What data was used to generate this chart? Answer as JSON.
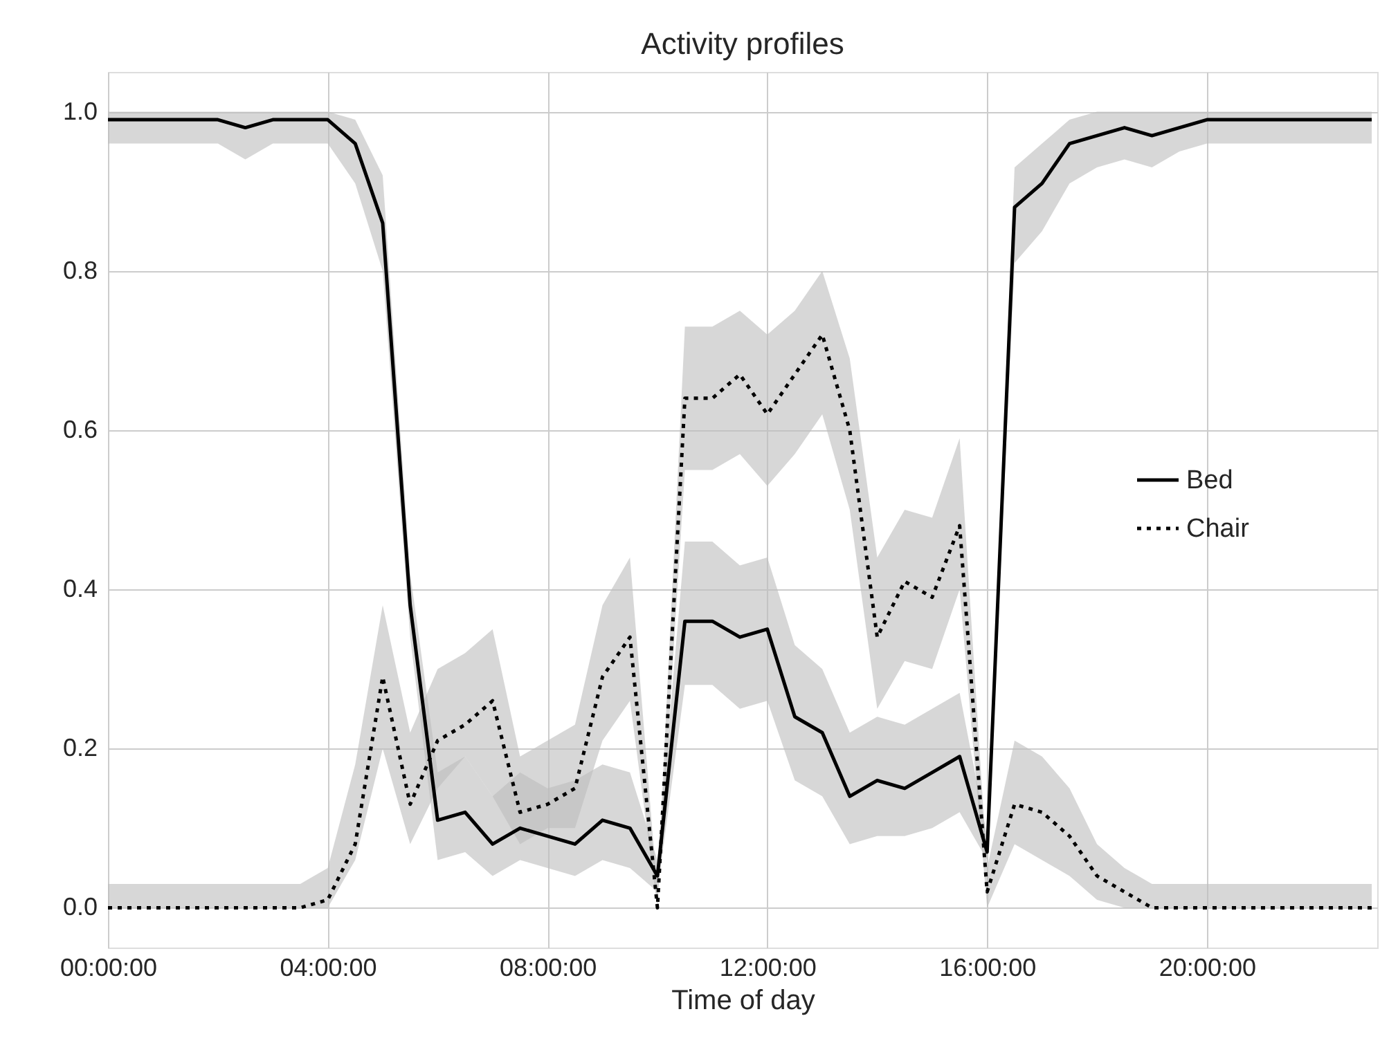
{
  "chart_data": {
    "type": "line",
    "title": "Activity profiles",
    "xlabel": "Time of day",
    "x": [
      0,
      0.5,
      1,
      1.5,
      2,
      2.5,
      3,
      3.5,
      4,
      4.5,
      5,
      5.5,
      6,
      6.5,
      7,
      7.5,
      8,
      8.5,
      9,
      9.5,
      10,
      10.5,
      11,
      11.5,
      12,
      12.5,
      13,
      13.5,
      14,
      14.5,
      15,
      15.5,
      16,
      16.5,
      17,
      17.5,
      18,
      18.5,
      19,
      19.5,
      20,
      20.5,
      21,
      21.5,
      22,
      22.5,
      23
    ],
    "series": [
      {
        "name": "Bed",
        "color": "#000000",
        "line_style": "solid",
        "values": [
          0.99,
          0.99,
          0.99,
          0.99,
          0.99,
          0.98,
          0.99,
          0.99,
          0.99,
          0.96,
          0.86,
          0.38,
          0.11,
          0.12,
          0.08,
          0.1,
          0.09,
          0.08,
          0.11,
          0.1,
          0.04,
          0.36,
          0.36,
          0.34,
          0.35,
          0.24,
          0.22,
          0.14,
          0.16,
          0.15,
          0.17,
          0.19,
          0.07,
          0.88,
          0.91,
          0.96,
          0.97,
          0.98,
          0.97,
          0.98,
          0.99,
          0.99,
          0.99,
          0.99,
          0.99,
          0.99,
          0.99
        ],
        "upper": [
          1.0,
          1.0,
          1.0,
          1.0,
          1.0,
          1.0,
          1.0,
          1.0,
          1.0,
          0.99,
          0.92,
          0.42,
          0.17,
          0.19,
          0.14,
          0.17,
          0.15,
          0.16,
          0.18,
          0.17,
          0.06,
          0.46,
          0.46,
          0.43,
          0.44,
          0.33,
          0.3,
          0.22,
          0.24,
          0.23,
          0.25,
          0.27,
          0.09,
          0.93,
          0.96,
          0.99,
          1.0,
          1.0,
          1.0,
          1.0,
          1.0,
          1.0,
          1.0,
          1.0,
          1.0,
          1.0,
          1.0
        ],
        "lower": [
          0.96,
          0.96,
          0.96,
          0.96,
          0.96,
          0.94,
          0.96,
          0.96,
          0.96,
          0.91,
          0.8,
          0.34,
          0.06,
          0.07,
          0.04,
          0.06,
          0.05,
          0.04,
          0.06,
          0.05,
          0.02,
          0.28,
          0.28,
          0.25,
          0.26,
          0.16,
          0.14,
          0.08,
          0.09,
          0.09,
          0.1,
          0.12,
          0.06,
          0.81,
          0.85,
          0.91,
          0.93,
          0.94,
          0.93,
          0.95,
          0.96,
          0.96,
          0.96,
          0.96,
          0.96,
          0.96,
          0.96
        ]
      },
      {
        "name": "Chair",
        "color": "#000000",
        "line_style": "dotted",
        "values": [
          0.0,
          0.0,
          0.0,
          0.0,
          0.0,
          0.0,
          0.0,
          0.0,
          0.01,
          0.08,
          0.29,
          0.13,
          0.21,
          0.23,
          0.26,
          0.12,
          0.13,
          0.15,
          0.29,
          0.34,
          0.0,
          0.64,
          0.64,
          0.67,
          0.62,
          0.67,
          0.72,
          0.6,
          0.34,
          0.41,
          0.39,
          0.48,
          0.02,
          0.13,
          0.12,
          0.09,
          0.04,
          0.02,
          0.0,
          0.0,
          0.0,
          0.0,
          0.0,
          0.0,
          0.0,
          0.0,
          0.0
        ],
        "upper": [
          0.03,
          0.03,
          0.03,
          0.03,
          0.03,
          0.03,
          0.03,
          0.03,
          0.05,
          0.18,
          0.38,
          0.22,
          0.3,
          0.32,
          0.35,
          0.19,
          0.21,
          0.23,
          0.38,
          0.44,
          0.02,
          0.73,
          0.73,
          0.75,
          0.72,
          0.75,
          0.8,
          0.69,
          0.44,
          0.5,
          0.49,
          0.59,
          0.05,
          0.21,
          0.19,
          0.15,
          0.08,
          0.05,
          0.03,
          0.03,
          0.03,
          0.03,
          0.03,
          0.03,
          0.03,
          0.03,
          0.03
        ],
        "lower": [
          0.0,
          0.0,
          0.0,
          0.0,
          0.0,
          0.0,
          0.0,
          0.0,
          0.0,
          0.06,
          0.2,
          0.08,
          0.15,
          0.19,
          0.14,
          0.08,
          0.1,
          0.1,
          0.21,
          0.26,
          0.0,
          0.55,
          0.55,
          0.57,
          0.53,
          0.57,
          0.62,
          0.5,
          0.25,
          0.31,
          0.3,
          0.4,
          0.0,
          0.08,
          0.06,
          0.04,
          0.01,
          0.0,
          0.0,
          0.0,
          0.0,
          0.0,
          0.0,
          0.0,
          0.0,
          0.0,
          0.0
        ]
      }
    ],
    "xlim": [
      0,
      23.1
    ],
    "xticks": [
      {
        "value": 0,
        "label": "00:00:00"
      },
      {
        "value": 4,
        "label": "04:00:00"
      },
      {
        "value": 8,
        "label": "08:00:00"
      },
      {
        "value": 12,
        "label": "12:00:00"
      },
      {
        "value": 16,
        "label": "16:00:00"
      },
      {
        "value": 20,
        "label": "20:00:00"
      }
    ],
    "ylim": [
      -0.05,
      1.05
    ],
    "yticks": [
      {
        "value": 0,
        "label": "0.0"
      },
      {
        "value": 0.2,
        "label": "0.2"
      },
      {
        "value": 0.4,
        "label": "0.4"
      },
      {
        "value": 0.6,
        "label": "0.6"
      },
      {
        "value": 0.8,
        "label": "0.8"
      },
      {
        "value": 1.0,
        "label": "1.0"
      }
    ],
    "grid": true,
    "legend": "right",
    "marker": "none"
  }
}
